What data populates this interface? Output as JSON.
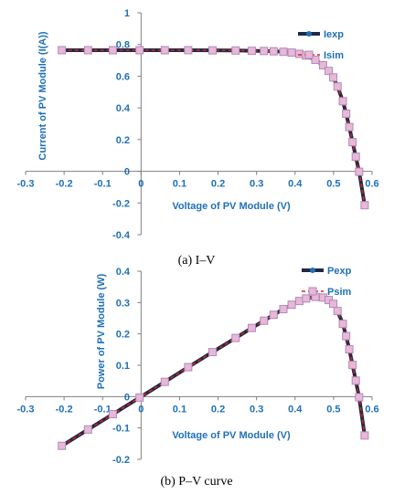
{
  "chart_data": [
    {
      "id": "iv",
      "type": "line",
      "caption": "(a) I–V",
      "xlabel": "Voltage of PV Module (V)",
      "ylabel": "Current of PV Module (I(A))",
      "xlim": [
        -0.3,
        0.6
      ],
      "ylim": [
        -0.4,
        1
      ],
      "xticks": [
        -0.3,
        -0.2,
        -0.1,
        0,
        0.1,
        0.2,
        0.3,
        0.4,
        0.5,
        0.6
      ],
      "yticks": [
        -0.4,
        -0.2,
        0,
        0.2,
        0.4,
        0.6,
        0.8,
        1
      ],
      "xtick_labels": [
        "-0.3",
        "-0.2",
        "-0.1",
        "0",
        "0.1",
        "0.2",
        "0.3",
        "0.4",
        "0.5",
        "0.6"
      ],
      "ytick_labels": [
        "-0.4",
        "-0.2",
        "0",
        "0.2",
        "0.4",
        "0.6",
        "0.8",
        "1"
      ],
      "legend_position": "top-right",
      "grid": false,
      "x": [
        -0.2057,
        -0.1378,
        -0.0734,
        -0.0038,
        0.0616,
        0.1224,
        0.1856,
        0.2456,
        0.2876,
        0.3192,
        0.3443,
        0.3696,
        0.3912,
        0.4112,
        0.4288,
        0.4527,
        0.4727,
        0.4872,
        0.4992,
        0.5103,
        0.5241,
        0.5327,
        0.5408,
        0.5493,
        0.5577,
        0.5664,
        0.5808
      ],
      "series": [
        {
          "name": "Iexp",
          "color": "#1f2a44",
          "values": [
            0.764,
            0.764,
            0.764,
            0.764,
            0.764,
            0.764,
            0.763,
            0.762,
            0.76,
            0.759,
            0.757,
            0.754,
            0.749,
            0.741,
            0.73,
            0.703,
            0.669,
            0.633,
            0.592,
            0.535,
            0.442,
            0.363,
            0.279,
            0.184,
            0.092,
            -0.003,
            -0.214
          ]
        },
        {
          "name": "Isim",
          "color": "#e0201c",
          "values": [
            0.764,
            0.764,
            0.764,
            0.764,
            0.764,
            0.764,
            0.763,
            0.762,
            0.76,
            0.759,
            0.757,
            0.754,
            0.749,
            0.741,
            0.73,
            0.703,
            0.669,
            0.633,
            0.592,
            0.535,
            0.442,
            0.363,
            0.279,
            0.184,
            0.092,
            -0.003,
            -0.214
          ]
        }
      ]
    },
    {
      "id": "pv",
      "type": "line",
      "caption": "(b) P–V curve",
      "xlabel": "Voltage of PV Module (V)",
      "ylabel": "Power of PV Module (W)",
      "xlim": [
        -0.3,
        0.6
      ],
      "ylim": [
        -0.2,
        0.4
      ],
      "xticks": [
        -0.3,
        -0.2,
        -0.1,
        0,
        0.1,
        0.2,
        0.3,
        0.4,
        0.5,
        0.6
      ],
      "yticks": [
        -0.2,
        -0.1,
        0,
        0.1,
        0.2,
        0.3,
        0.4
      ],
      "xtick_labels": [
        "-0.3",
        "-0.2",
        "-0.1",
        "0",
        "0.1",
        "0.2",
        "0.3",
        "0.4",
        "0.5",
        "0.6"
      ],
      "ytick_labels": [
        "-0.2",
        "-0.1",
        "0",
        "0.1",
        "0.2",
        "0.3",
        "0.4"
      ],
      "legend_position": "top-right",
      "grid": false,
      "x": [
        -0.2057,
        -0.1378,
        -0.0734,
        -0.0038,
        0.0616,
        0.1224,
        0.1856,
        0.2456,
        0.2876,
        0.3192,
        0.3443,
        0.3696,
        0.3912,
        0.4112,
        0.4288,
        0.4527,
        0.4727,
        0.4872,
        0.4992,
        0.5103,
        0.5241,
        0.5327,
        0.5408,
        0.5493,
        0.5577,
        0.5664,
        0.5808
      ],
      "series": [
        {
          "name": "Pexp",
          "color": "#1f2a44",
          "values": [
            -0.157,
            -0.105,
            -0.056,
            -0.003,
            0.047,
            0.094,
            0.142,
            0.187,
            0.219,
            0.242,
            0.261,
            0.279,
            0.293,
            0.305,
            0.313,
            0.318,
            0.316,
            0.308,
            0.296,
            0.273,
            0.232,
            0.193,
            0.151,
            0.101,
            0.051,
            -0.002,
            -0.124
          ]
        },
        {
          "name": "Psim",
          "color": "#e0201c",
          "values": [
            -0.157,
            -0.105,
            -0.056,
            -0.003,
            0.047,
            0.094,
            0.142,
            0.187,
            0.219,
            0.242,
            0.261,
            0.279,
            0.293,
            0.305,
            0.313,
            0.318,
            0.316,
            0.308,
            0.296,
            0.273,
            0.232,
            0.193,
            0.151,
            0.101,
            0.051,
            -0.002,
            -0.124
          ]
        }
      ]
    }
  ]
}
